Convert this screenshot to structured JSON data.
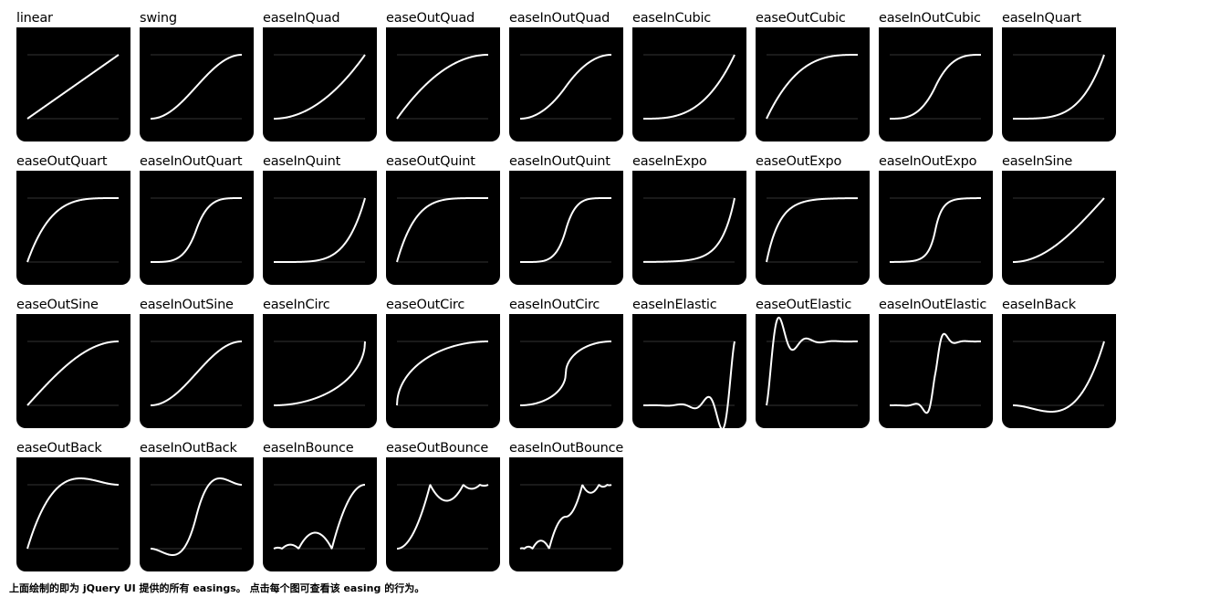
{
  "easings": [
    "linear",
    "swing",
    "easeInQuad",
    "easeOutQuad",
    "easeInOutQuad",
    "easeInCubic",
    "easeOutCubic",
    "easeInOutCubic",
    "easeInQuart",
    "easeOutQuart",
    "easeInOutQuart",
    "easeInQuint",
    "easeOutQuint",
    "easeInOutQuint",
    "easeInExpo",
    "easeOutExpo",
    "easeInOutExpo",
    "easeInSine",
    "easeOutSine",
    "easeInOutSine",
    "easeInCirc",
    "easeOutCirc",
    "easeInOutCirc",
    "easeInElastic",
    "easeOutElastic",
    "easeInOutElastic",
    "easeInBack",
    "easeOutBack",
    "easeInOutBack",
    "easeInBounce",
    "easeOutBounce",
    "easeInOutBounce"
  ],
  "footer": {
    "text": "上面绘制的即为 jQuery UI 提供的所有 easings。 点击每个图可查看该 easing 的行为。"
  },
  "colors": {
    "tile_background": "#000000",
    "curve": "#ffffff",
    "guide_line": "#666666"
  }
}
